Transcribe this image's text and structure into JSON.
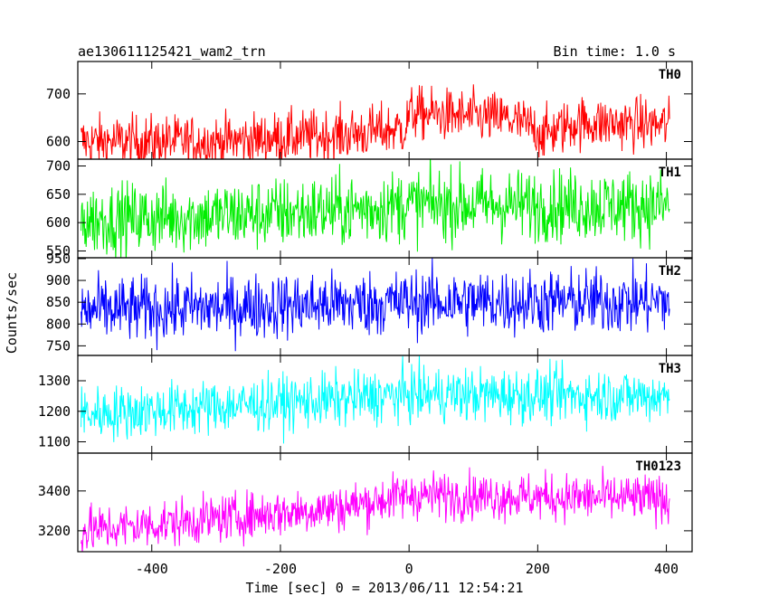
{
  "header": {
    "title": "ae130611125421_wam2_trn",
    "bin_time": "Bin time: 1.0 s"
  },
  "chart_data": [
    {
      "type": "line",
      "panel": "TH0",
      "label": "TH0",
      "color": "#ff0000",
      "ylim": [
        563,
        768
      ],
      "yticks": [
        600,
        700
      ],
      "trend": [
        [
          -510,
          600
        ],
        [
          -300,
          600
        ],
        [
          -100,
          615
        ],
        [
          -5,
          628
        ],
        [
          0,
          660
        ],
        [
          150,
          648
        ],
        [
          190,
          630
        ],
        [
          210,
          615
        ],
        [
          260,
          640
        ],
        [
          405,
          635
        ]
      ],
      "noise": 28
    },
    {
      "type": "line",
      "panel": "TH1",
      "label": "TH1",
      "color": "#00ee00",
      "ylim": [
        538,
        712
      ],
      "yticks": [
        550,
        600,
        650,
        700
      ],
      "trend": [
        [
          -510,
          605
        ],
        [
          -300,
          612
        ],
        [
          -100,
          622
        ],
        [
          0,
          632
        ],
        [
          405,
          630
        ]
      ],
      "noise": 32
    },
    {
      "type": "line",
      "panel": "TH2",
      "label": "TH2",
      "color": "#0000ff",
      "ylim": [
        728,
        952
      ],
      "yticks": [
        750,
        800,
        850,
        900,
        950
      ],
      "trend": [
        [
          -510,
          830
        ],
        [
          -300,
          838
        ],
        [
          0,
          850
        ],
        [
          405,
          852
        ]
      ],
      "noise": 38
    },
    {
      "type": "line",
      "panel": "TH3",
      "label": "TH3",
      "color": "#00ffff",
      "ylim": [
        1063,
        1383
      ],
      "yticks": [
        1100,
        1200,
        1300
      ],
      "trend": [
        [
          -510,
          1190
        ],
        [
          -300,
          1215
        ],
        [
          -100,
          1240
        ],
        [
          0,
          1255
        ],
        [
          405,
          1250
        ]
      ],
      "noise": 45
    },
    {
      "type": "line",
      "panel": "TH0123",
      "label": "TH0123",
      "color": "#ff00ff",
      "ylim": [
        3095,
        3590
      ],
      "yticks": [
        3200,
        3400
      ],
      "trend": [
        [
          -510,
          3200
        ],
        [
          -300,
          3260
        ],
        [
          -100,
          3320
        ],
        [
          0,
          3380
        ],
        [
          405,
          3360
        ]
      ],
      "noise": 60
    }
  ],
  "x_axis": {
    "range": [
      -515,
      440
    ],
    "ticks": [
      -400,
      -200,
      0,
      200,
      400
    ],
    "label": "Time [sec] 0 = 2013/06/11 12:54:21"
  },
  "y_axis": {
    "label": "Counts/sec"
  }
}
